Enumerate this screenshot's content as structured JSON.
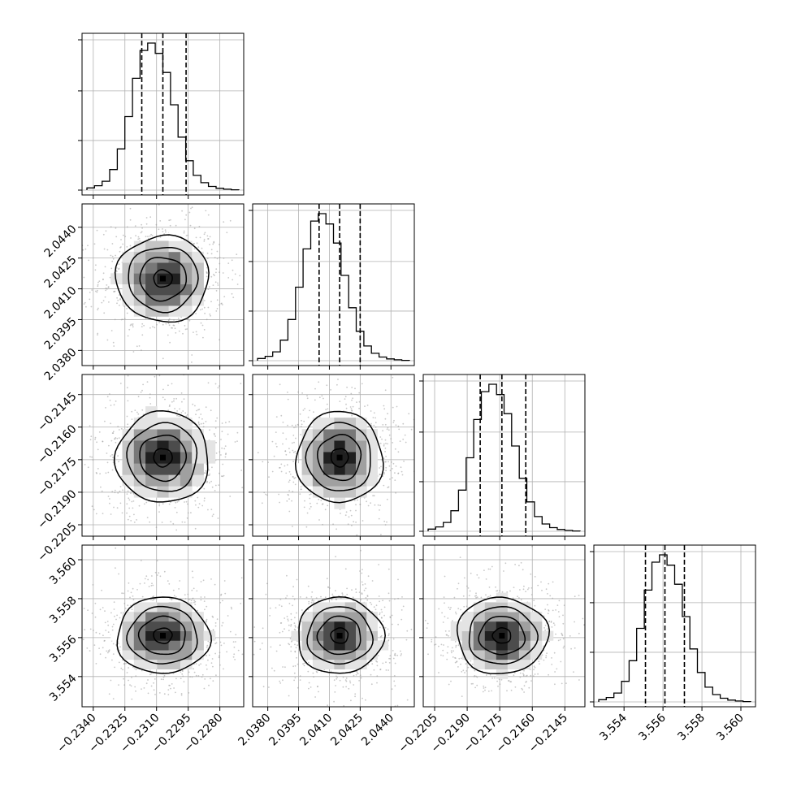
{
  "chart_data": {
    "type": "corner",
    "parameters": [
      {
        "range": [
          -0.2343,
          -0.2271
        ],
        "ticks": [
          "−0.2340",
          "−0.2325",
          "−0.2310",
          "−0.2295",
          "−0.2280"
        ],
        "tick_values": [
          -0.234,
          -0.2325,
          -0.231,
          -0.2295,
          -0.228
        ],
        "quantiles": [
          -0.2317,
          -0.2307,
          -0.2296
        ],
        "mean": -0.2307,
        "sd": 0.0011
      },
      {
        "range": [
          2.0375,
          2.0449
        ],
        "ticks": [
          "2.0380",
          "2.0395",
          "2.0410",
          "2.0425",
          "2.0440"
        ],
        "tick_values": [
          2.038,
          2.0395,
          2.041,
          2.0425,
          2.044
        ],
        "quantiles": [
          2.0405,
          2.0415,
          2.0425
        ],
        "mean": 2.0415,
        "sd": 0.00105
      },
      {
        "range": [
          -0.2208,
          -0.2138
        ],
        "ticks": [
          "−0.2205",
          "−0.2190",
          "−0.2175",
          "−0.2160",
          "−0.2145"
        ],
        "tick_values": [
          -0.2205,
          -0.219,
          -0.2175,
          -0.216,
          -0.2145
        ],
        "quantiles": [
          -0.2184,
          -0.2174,
          -0.2163
        ],
        "mean": -0.2174,
        "sd": 0.00105
      },
      {
        "range": [
          3.5527,
          3.5605
        ],
        "ticks": [
          "3.554",
          "3.556",
          "3.558",
          "3.560"
        ],
        "tick_values": [
          3.554,
          3.556,
          3.558,
          3.56
        ],
        "quantiles": [
          3.5551,
          3.5561,
          3.5571
        ],
        "mean": 3.5561,
        "sd": 0.00098
      }
    ],
    "histogram": {
      "bins": 20,
      "profile": [
        0.015,
        0.03,
        0.06,
        0.14,
        0.28,
        0.5,
        0.76,
        0.95,
        1.0,
        0.93,
        0.8,
        0.58,
        0.36,
        0.2,
        0.1,
        0.05,
        0.025,
        0.012,
        0.006,
        0.002
      ]
    },
    "contour_levels_sigma": [
      0.4,
      1.0,
      1.5,
      2.0
    ],
    "grid": true,
    "colors": {
      "line": "#000000",
      "grid": "#b0b0b0",
      "scatter": "#9a9a9a",
      "density": [
        "#ffffff",
        "#e4e4e4",
        "#c4c4c4",
        "#a0a0a0",
        "#787878",
        "#4c4c4c",
        "#202020"
      ]
    }
  }
}
